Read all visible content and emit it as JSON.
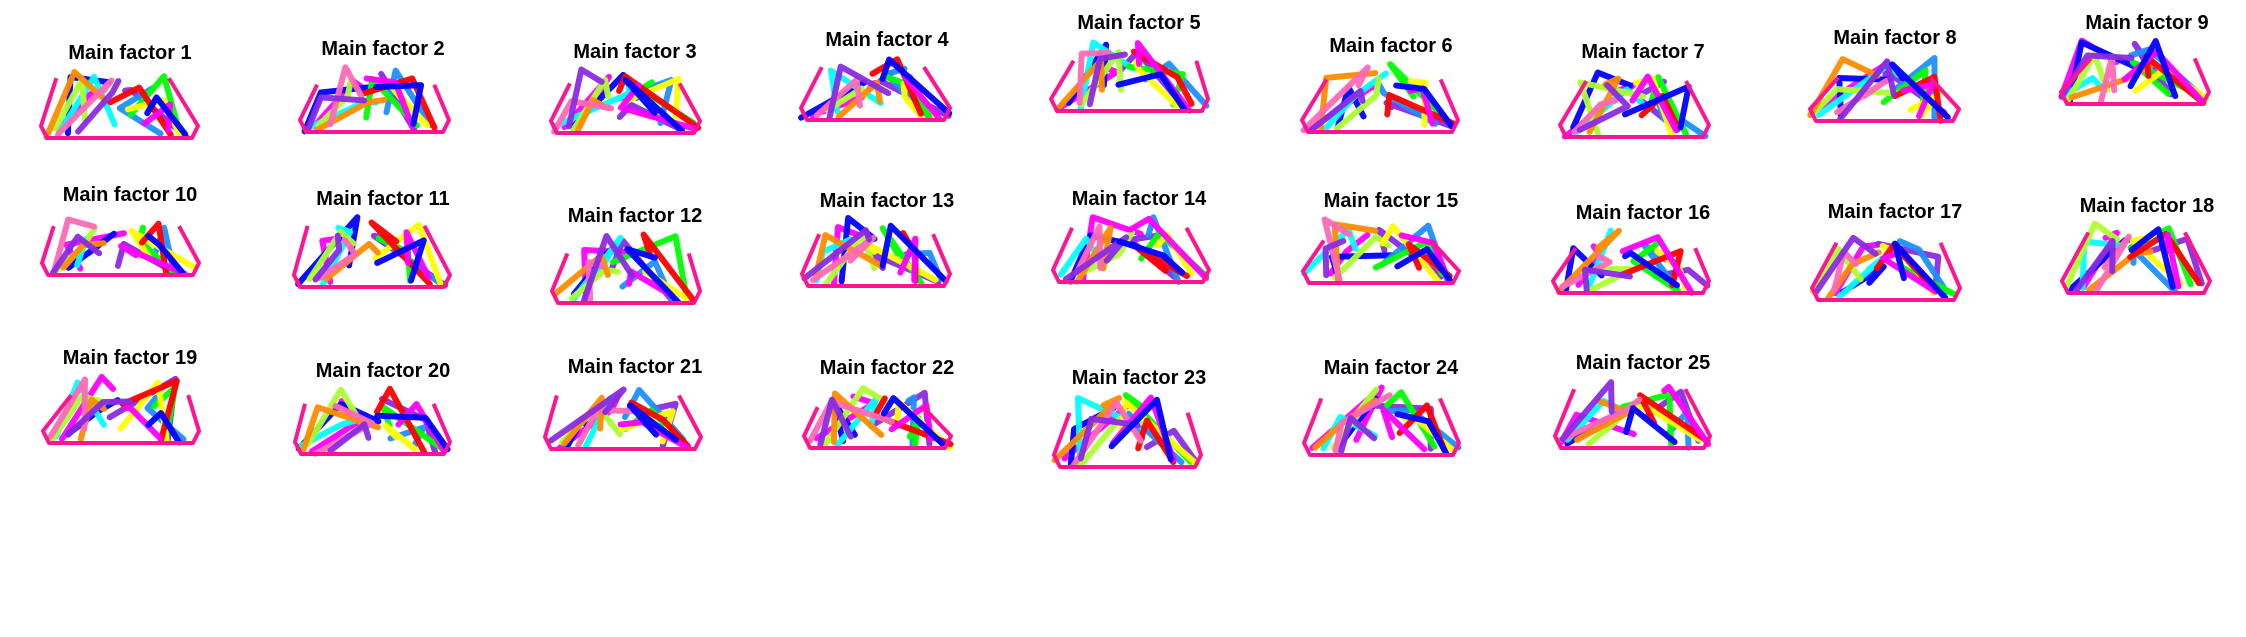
{
  "figure": {
    "panels": [
      {
        "title": "Main factor 1"
      },
      {
        "title": "Main factor 2"
      },
      {
        "title": "Main factor 3"
      },
      {
        "title": "Main factor 4"
      },
      {
        "title": "Main factor 5"
      },
      {
        "title": "Main factor 6"
      },
      {
        "title": "Main factor 7"
      },
      {
        "title": "Main factor 8"
      },
      {
        "title": "Main factor 9"
      },
      {
        "title": "Main factor 10"
      },
      {
        "title": "Main factor 11"
      },
      {
        "title": "Main factor 12"
      },
      {
        "title": "Main factor 13"
      },
      {
        "title": "Main factor 14"
      },
      {
        "title": "Main factor 15"
      },
      {
        "title": "Main factor 16"
      },
      {
        "title": "Main factor 17"
      },
      {
        "title": "Main factor 18"
      },
      {
        "title": "Main factor 19"
      },
      {
        "title": "Main factor 20"
      },
      {
        "title": "Main factor 21"
      },
      {
        "title": "Main factor 22"
      },
      {
        "title": "Main factor 23"
      },
      {
        "title": "Main factor 24"
      },
      {
        "title": "Main factor 25"
      }
    ],
    "colors": {
      "base": "#ff1493",
      "palette": [
        "#ff00ff",
        "#8a2be2",
        "#0000ff",
        "#1e90ff",
        "#00ffff",
        "#00ff00",
        "#adff2f",
        "#ffff00",
        "#ff8c00",
        "#ff0000",
        "#ff69b4"
      ]
    }
  }
}
